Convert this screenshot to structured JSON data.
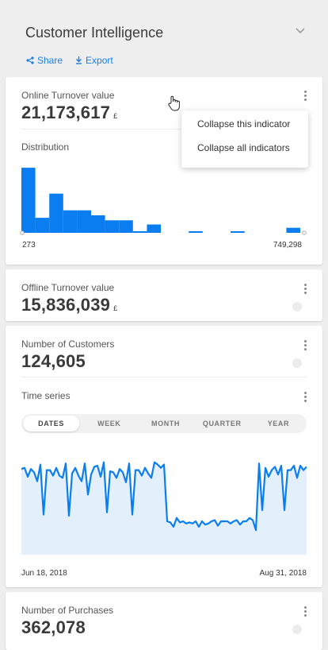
{
  "header": {
    "title": "Customer Intelligence",
    "share_label": "Share",
    "export_label": "Export"
  },
  "colors": {
    "accent": "#1a7fe0",
    "bar": "#0a7ef0",
    "area_fill": "#e3f0fc"
  },
  "online": {
    "label": "Online Turnover value",
    "value": "21,173,617",
    "currency": "£",
    "distribution_label": "Distribution",
    "min_label": "273",
    "max_label": "749,298"
  },
  "menu": {
    "items": [
      "Collapse this indicator",
      "Collapse all indicators"
    ]
  },
  "offline": {
    "label": "Offline Turnover value",
    "value": "15,836,039",
    "currency": "£"
  },
  "customers": {
    "label": "Number of Customers",
    "value": "124,605",
    "timeseries_label": "Time series",
    "tabs": [
      "DATES",
      "WEEK",
      "MONTH",
      "QUARTER",
      "YEAR"
    ],
    "active_tab": "DATES",
    "start_date": "Jun 18, 2018",
    "end_date": "Aug 31, 2018"
  },
  "purchases": {
    "label": "Number of Purchases",
    "value": "362,078"
  },
  "chart_data": [
    {
      "type": "bar",
      "title": "Distribution",
      "x_range_labels": [
        "273",
        "749,298"
      ],
      "values": [
        78,
        18,
        47,
        27,
        27,
        21,
        15,
        15,
        2,
        10,
        0,
        0,
        2,
        0,
        0,
        2,
        0,
        0,
        0,
        6
      ]
    },
    {
      "type": "area",
      "title": "Time series",
      "x_start": "Jun 18, 2018",
      "x_end": "Aug 31, 2018",
      "values": [
        77,
        78,
        70,
        77,
        74,
        66,
        81,
        36,
        76,
        76,
        71,
        78,
        71,
        69,
        82,
        35,
        73,
        78,
        71,
        66,
        82,
        54,
        72,
        79,
        80,
        70,
        83,
        38,
        75,
        74,
        69,
        77,
        74,
        65,
        82,
        36,
        76,
        76,
        71,
        78,
        73,
        69,
        83,
        81,
        78,
        81,
        30,
        29,
        25,
        33,
        29,
        30,
        28,
        29,
        28,
        30,
        25,
        30,
        27,
        28,
        30,
        31,
        26,
        30,
        30,
        30,
        28,
        30,
        31,
        27,
        30,
        30,
        33,
        31,
        22,
        82,
        40,
        78,
        70,
        76,
        79,
        72,
        80,
        40,
        76,
        76,
        80,
        69,
        80,
        76,
        79
      ]
    }
  ]
}
